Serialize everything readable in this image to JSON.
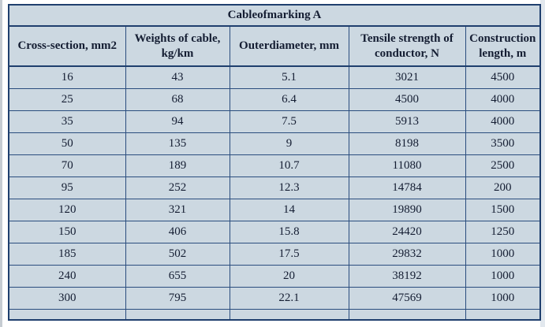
{
  "colors": {
    "cell_background": "#ccd8e1",
    "border": "#2a4d7e",
    "outer_border": "#1f3f6e",
    "text": "#141d32"
  },
  "table": {
    "title": "Cableofmarking A",
    "columns": [
      {
        "label": "Cross-section, mm2"
      },
      {
        "label": "Weights of cable, kg/km"
      },
      {
        "label": "Outerdiameter, mm"
      },
      {
        "label": "Tensile strength of conductor, N"
      },
      {
        "label": "Construction length, m"
      }
    ],
    "rows": [
      [
        "16",
        "43",
        "5.1",
        "3021",
        "4500"
      ],
      [
        "25",
        "68",
        "6.4",
        "4500",
        "4000"
      ],
      [
        "35",
        "94",
        "7.5",
        "5913",
        "4000"
      ],
      [
        "50",
        "135",
        "9",
        "8198",
        "3500"
      ],
      [
        "70",
        "189",
        "10.7",
        "11080",
        "2500"
      ],
      [
        "95",
        "252",
        "12.3",
        "14784",
        "200"
      ],
      [
        "120",
        "321",
        "14",
        "19890",
        "1500"
      ],
      [
        "150",
        "406",
        "15.8",
        "24420",
        "1250"
      ],
      [
        "185",
        "502",
        "17.5",
        "29832",
        "1000"
      ],
      [
        "240",
        "655",
        "20",
        "38192",
        "1000"
      ],
      [
        "300",
        "795",
        "22.1",
        "47569",
        "1000"
      ]
    ],
    "partial_empty_row": true
  }
}
